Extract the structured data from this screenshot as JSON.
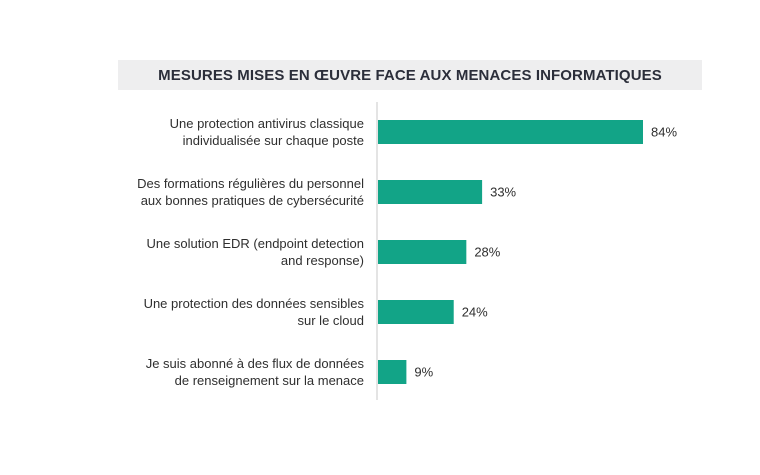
{
  "chart_data": {
    "type": "bar",
    "orientation": "horizontal",
    "title": "MESURES MISES EN ŒUVRE FACE AUX MENACES INFORMATIQUES",
    "categories": [
      [
        "Une protection antivirus classique",
        "individualisée sur chaque poste"
      ],
      [
        "Des formations régulières du personnel",
        "aux bonnes pratiques de cybersécurité"
      ],
      [
        "Une solution EDR (endpoint detection",
        "and response)"
      ],
      [
        "Une protection des données sensibles",
        "sur le cloud"
      ],
      [
        "Je suis abonné à des flux de données",
        "de renseignement sur la menace"
      ]
    ],
    "values": [
      84,
      33,
      28,
      24,
      9
    ],
    "value_labels": [
      "84%",
      "33%",
      "28%",
      "24%",
      "9%"
    ],
    "xlim": [
      0,
      100
    ],
    "bar_color": "#12a487",
    "axis_color": "#c8c8c8",
    "grid": false,
    "legend": "none"
  }
}
